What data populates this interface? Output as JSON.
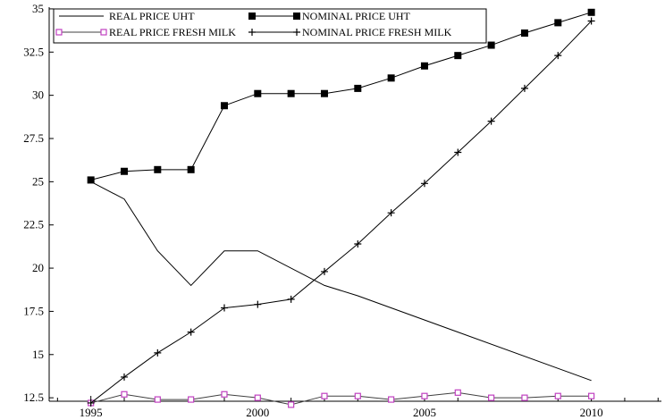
{
  "chart_data": {
    "type": "line",
    "title": "",
    "xlabel": "",
    "ylabel": "",
    "xlim": [
      1993.75,
      2012.1
    ],
    "ylim": [
      12.3,
      35.1
    ],
    "x_ticks": [
      "1995",
      "2000",
      "2005",
      "2010"
    ],
    "y_ticks": [
      "12.5",
      "15",
      "17.5",
      "20",
      "22.5",
      "25",
      "27.5",
      "30",
      "32.5",
      "35"
    ],
    "grid": false,
    "legend_position": "top-left",
    "x": [
      1995,
      1996,
      1997,
      1998,
      1999,
      2000,
      2001,
      2002,
      2003,
      2004,
      2005,
      2006,
      2007,
      2008,
      2009,
      2010
    ],
    "series": [
      {
        "name": "REAL PRICE UHT",
        "marker": "none",
        "color": "#000000",
        "points": [
          [
            1995,
            25.0
          ],
          [
            1996,
            24.0
          ],
          [
            1997,
            21.0
          ],
          [
            1998,
            19.0
          ],
          [
            1999,
            21.0
          ],
          [
            2000,
            21.0
          ],
          [
            2002,
            19.0
          ],
          [
            2003,
            18.4
          ],
          [
            2010,
            13.5
          ]
        ]
      },
      {
        "name": "NOMINAL PRICE UHT",
        "marker": "filled-square",
        "color": "#000000",
        "values": [
          25.1,
          25.6,
          25.7,
          25.7,
          29.4,
          30.1,
          30.1,
          30.1,
          30.4,
          31.0,
          31.7,
          32.3,
          32.9,
          33.6,
          34.2,
          34.8
        ]
      },
      {
        "name": "REAL PRICE FRESH MILK",
        "marker": "open-square",
        "color": "#404040",
        "marker_color": "#c040c0",
        "values": [
          12.2,
          12.7,
          12.4,
          12.4,
          12.7,
          12.5,
          12.1,
          12.6,
          12.6,
          12.4,
          12.6,
          12.8,
          12.5,
          12.5,
          12.6,
          12.6
        ]
      },
      {
        "name": "NOMINAL PRICE FRESH MILK",
        "marker": "plus",
        "color": "#000000",
        "values": [
          12.2,
          13.7,
          15.1,
          16.3,
          17.7,
          17.9,
          18.2,
          19.8,
          21.4,
          23.2,
          24.9,
          26.7,
          28.5,
          30.4,
          32.3,
          34.3
        ]
      }
    ]
  }
}
